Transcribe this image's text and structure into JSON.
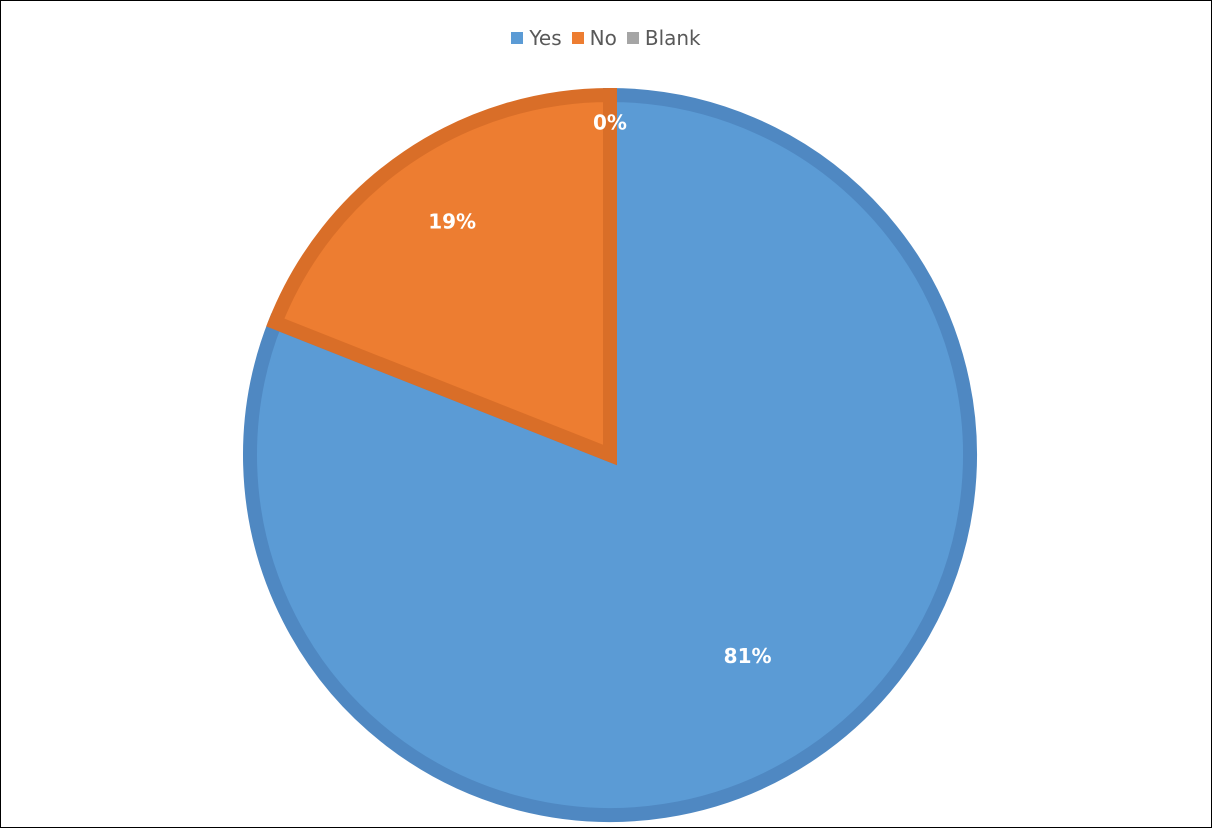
{
  "chart_data": {
    "type": "pie",
    "title": "",
    "legend_position": "top",
    "categories": [
      "Yes",
      "No",
      "Blank"
    ],
    "values": [
      81,
      19,
      0
    ],
    "value_labels": [
      "81%",
      "19%",
      "0%"
    ],
    "colors": [
      "#5b9bd5",
      "#ed7d31",
      "#a5a5a5"
    ],
    "border_colors": [
      "#4f88c2",
      "#d96e28",
      "#8f8f8f"
    ]
  }
}
